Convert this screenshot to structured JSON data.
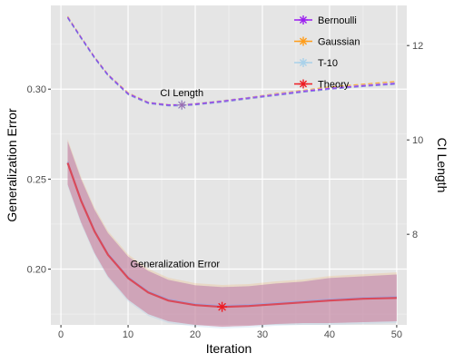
{
  "chart_data": {
    "type": "line",
    "title": "",
    "xlabel": "Iteration",
    "ylabel": "Generalization Error",
    "y2label": "CI Length",
    "xlim": [
      -1.5,
      51.5
    ],
    "ylim": [
      0.169,
      0.3465
    ],
    "y2lim": [
      6.08,
      12.85
    ],
    "xticks": [
      0,
      10,
      20,
      30,
      40,
      50
    ],
    "yticks": [
      0.2,
      0.25,
      0.3
    ],
    "y2ticks": [
      8,
      10,
      12
    ],
    "xtick_labels": [
      "0",
      "10",
      "20",
      "30",
      "40",
      "50"
    ],
    "ytick_labels": [
      "0.20",
      "0.25",
      "0.30"
    ],
    "y2tick_labels": [
      "8",
      "10",
      "12"
    ],
    "grid": true,
    "legend_position": "top-right",
    "background": "#e5e5e5",
    "legend": [
      {
        "label": "Bernoulli",
        "color": "#9b1ff0"
      },
      {
        "label": "Gaussian",
        "color": "#ff9d1a"
      },
      {
        "label": "T-10",
        "color": "#a9d1ea"
      },
      {
        "label": "Theory",
        "color": "#ee1d23"
      }
    ],
    "annotations": [
      {
        "text": "CI Length",
        "x": 18,
        "y": 0.3
      }
    ],
    "annotations2": [
      {
        "text": "Generalization Error",
        "x": 17,
        "y": 0.202
      }
    ],
    "generalization_error": {
      "x": [
        1,
        3,
        5,
        7,
        10,
        13,
        16,
        20,
        24,
        28,
        32,
        36,
        40,
        45,
        50
      ],
      "theory": [
        0.259,
        0.238,
        0.221,
        0.208,
        0.195,
        0.187,
        0.1825,
        0.18,
        0.179,
        0.1795,
        0.1805,
        0.1815,
        0.1825,
        0.1835,
        0.184
      ],
      "lower": [
        0.247,
        0.226,
        0.209,
        0.196,
        0.183,
        0.175,
        0.171,
        0.169,
        0.168,
        0.1685,
        0.1695,
        0.17,
        0.17,
        0.1705,
        0.171
      ],
      "upper": [
        0.271,
        0.25,
        0.233,
        0.22,
        0.207,
        0.199,
        0.194,
        0.191,
        0.19,
        0.1905,
        0.192,
        0.193,
        0.195,
        0.196,
        0.197
      ],
      "marker": {
        "x": 24,
        "y": 0.179,
        "color": "#ee1d23"
      }
    },
    "ci_length": {
      "x": [
        1,
        3,
        5,
        7,
        10,
        13,
        16,
        18,
        20,
        24,
        28,
        32,
        36,
        40,
        45,
        50
      ],
      "bernoulli": [
        12.6,
        12.17,
        11.75,
        11.38,
        10.98,
        10.79,
        10.74,
        10.74,
        10.76,
        10.82,
        10.89,
        10.96,
        11.03,
        11.09,
        11.15,
        11.2
      ],
      "gaussian": [
        12.62,
        12.18,
        11.76,
        11.39,
        11.0,
        10.8,
        10.75,
        10.75,
        10.77,
        10.83,
        10.9,
        10.98,
        11.05,
        11.12,
        11.18,
        11.24
      ],
      "t10": [
        12.61,
        12.18,
        11.76,
        11.39,
        10.99,
        10.8,
        10.75,
        10.75,
        10.77,
        10.83,
        10.9,
        10.97,
        11.04,
        11.1,
        11.16,
        11.21
      ],
      "marker": {
        "x": 18,
        "y": 10.74
      }
    }
  }
}
